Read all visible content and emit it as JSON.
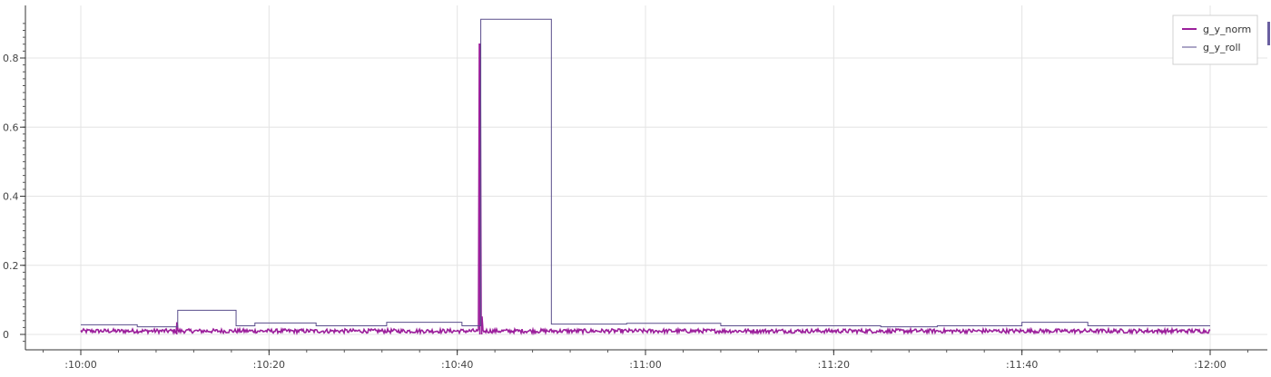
{
  "chart_data": {
    "type": "line",
    "title": "",
    "xlabel": "",
    "ylabel": "",
    "x_unit": "minutes",
    "xlim": [
      0,
      120
    ],
    "ylim": [
      -0.03,
      0.92
    ],
    "x_ticks": [
      {
        "value": 0,
        "label": ":10:00"
      },
      {
        "value": 20,
        "label": ":10:20"
      },
      {
        "value": 40,
        "label": ":10:40"
      },
      {
        "value": 60,
        "label": ":11:00"
      },
      {
        "value": 80,
        "label": ":11:20"
      },
      {
        "value": 100,
        "label": ":11:40"
      },
      {
        "value": 120,
        "label": ":12:00"
      }
    ],
    "y_ticks": [
      {
        "value": 0,
        "label": "0"
      },
      {
        "value": 0.2,
        "label": "0.2"
      },
      {
        "value": 0.4,
        "label": "0.4"
      },
      {
        "value": 0.6,
        "label": "0.6"
      },
      {
        "value": 0.8,
        "label": "0.8"
      }
    ],
    "grid": true,
    "legend_position": "top-right",
    "series": [
      {
        "name": "g_y_norm",
        "color": "#9b1f9b",
        "style": "noisy",
        "baseline": 0.008,
        "noise_amplitude": 0.012,
        "spikes": [
          {
            "x": 42.4,
            "y": 0.84
          },
          {
            "x": 42.6,
            "y": 0.05
          },
          {
            "x": 10.2,
            "y": 0.035
          }
        ]
      },
      {
        "name": "g_y_roll",
        "color": "#5a4e8c",
        "style": "step",
        "x": [
          0,
          6,
          10.3,
          16.5,
          18.5,
          25,
          32.5,
          40.5,
          42.5,
          50,
          58,
          68,
          85,
          91,
          100,
          107,
          116,
          120
        ],
        "y": [
          0.028,
          0.022,
          0.07,
          0.025,
          0.033,
          0.025,
          0.035,
          0.025,
          0.912,
          0.03,
          0.032,
          0.025,
          0.022,
          0.025,
          0.035,
          0.025,
          0.025,
          0.025
        ]
      }
    ]
  }
}
